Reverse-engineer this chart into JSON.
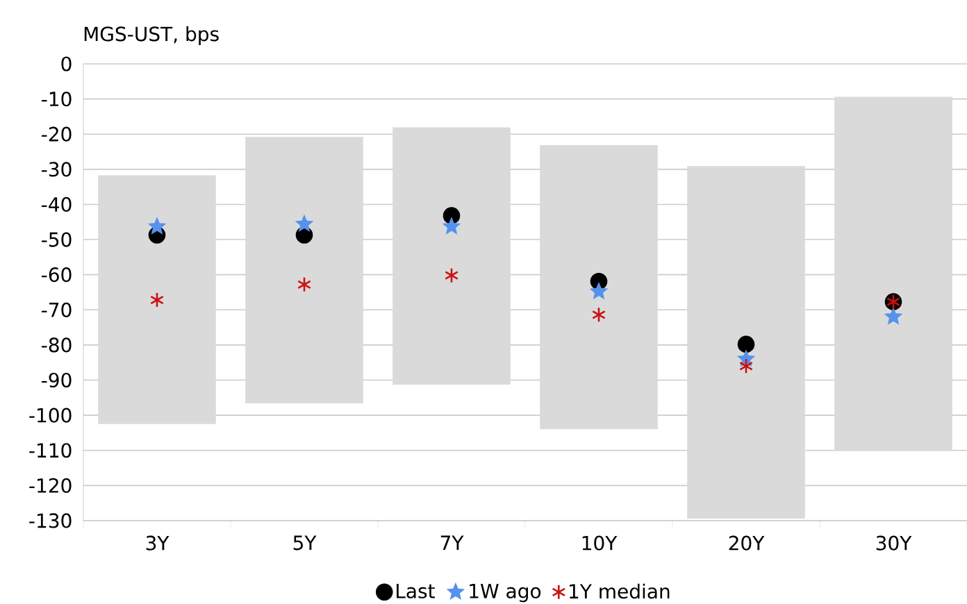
{
  "chart_data": {
    "type": "bar",
    "ylabel": "MGS-UST, bps",
    "categories": [
      "3Y",
      "5Y",
      "7Y",
      "10Y",
      "20Y",
      "30Y"
    ],
    "series": [
      {
        "color": "#dadada",
        "base": [
          -102.5,
          -96.6,
          -91.3,
          -104,
          -129.4,
          -110
        ],
        "values": [
          70.8,
          75.8,
          73.2,
          80.9,
          100.3,
          100.6
        ]
      },
      {
        "type": "scatter",
        "name": "Last",
        "color": "#000000",
        "marker": "circle",
        "values": [
          -48.7,
          -48.7,
          -43.2,
          -61.9,
          -79.8,
          -67.7
        ]
      },
      {
        "type": "scatter",
        "name": "1W ago",
        "color": "#5592ec",
        "marker": "star",
        "values": [
          -46.3,
          -45.6,
          -46.3,
          -64.8,
          -84,
          -72
        ]
      },
      {
        "type": "scatter",
        "name": "1Y median",
        "color": "#cc1111",
        "marker": "cross",
        "values": [
          -67.2,
          -62.8,
          -60.2,
          -71.4,
          -86,
          -67.7
        ]
      }
    ],
    "ylim": [
      -130,
      0
    ],
    "yticks": [
      0,
      -10,
      -20,
      -30,
      -40,
      -50,
      -60,
      -70,
      -80,
      -90,
      -100,
      -110,
      -120,
      -130
    ],
    "grid": "y",
    "legend": "bottom"
  }
}
